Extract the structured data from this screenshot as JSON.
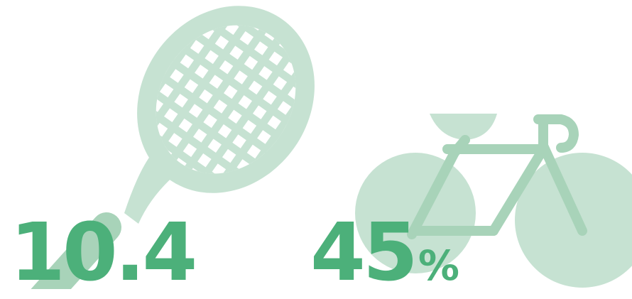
{
  "colors": {
    "illustration_light": "#c6e2d2",
    "illustration_mid": "#a8d3b9",
    "accent_green": "#4cb07a",
    "background": "#ffffff"
  },
  "icons": {
    "left": "tennis-racket-icon",
    "right": "bicycle-icon"
  },
  "stats": {
    "left_value": "10.4",
    "right_value": "45",
    "right_unit": "%"
  }
}
